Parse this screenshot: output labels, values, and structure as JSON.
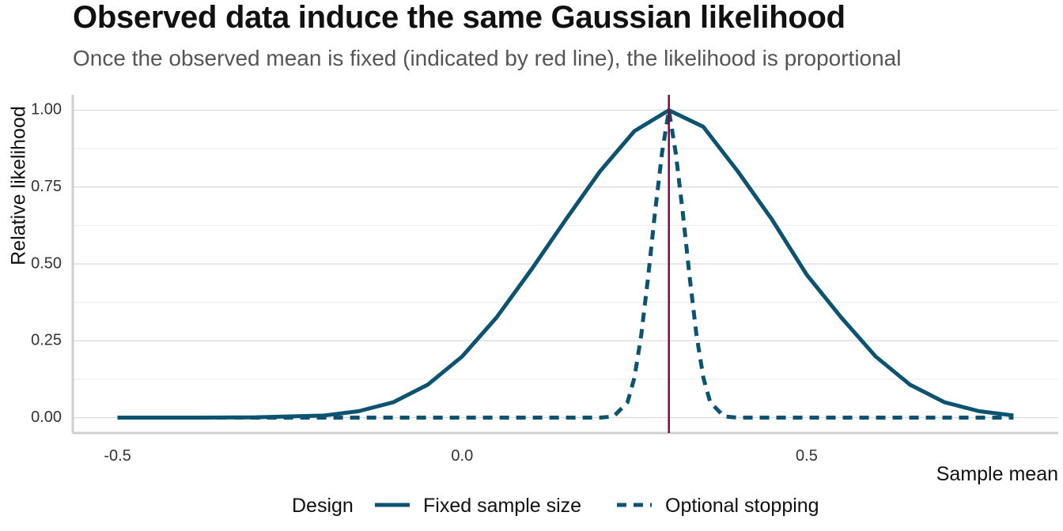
{
  "chart_data": {
    "type": "line",
    "title": "Observed data induce the same Gaussian likelihood",
    "subtitle": "Once the observed mean is fixed (indicated by red line), the likelihood is proportional",
    "xlabel": "Sample mean",
    "ylabel": "Relative likelihood",
    "xlim": [
      -0.565,
      0.865
    ],
    "ylim": [
      -0.05,
      1.05
    ],
    "x_ticks": [
      -0.5,
      0.0,
      0.5
    ],
    "x_tick_labels": [
      "-0.5",
      "0.0",
      "0.5"
    ],
    "y_ticks": [
      0,
      0.25,
      0.5,
      0.75,
      1.0
    ],
    "y_tick_labels": [
      "0.00",
      "0.25",
      "0.50",
      "0.75",
      "1.00"
    ],
    "grid": true,
    "observed_mean": 0.3,
    "legend": {
      "title": "Design",
      "position": "bottom"
    },
    "series": [
      {
        "name": "Fixed sample size",
        "style": "solid",
        "color": "#0b5370",
        "x": [
          -0.5,
          -0.4,
          -0.3,
          -0.2,
          -0.15,
          -0.1,
          -0.05,
          0.0,
          0.05,
          0.1,
          0.15,
          0.2,
          0.25,
          0.3,
          0.35,
          0.4,
          0.45,
          0.5,
          0.55,
          0.6,
          0.65,
          0.7,
          0.75,
          0.8
        ],
        "y": [
          0.0,
          0.0,
          0.001,
          0.007,
          0.021,
          0.05,
          0.107,
          0.199,
          0.326,
          0.48,
          0.643,
          0.801,
          0.932,
          1.0,
          0.946,
          0.801,
          0.643,
          0.465,
          0.326,
          0.199,
          0.107,
          0.05,
          0.021,
          0.007
        ]
      },
      {
        "name": "Optional stopping",
        "style": "dashed",
        "color": "#0b5370",
        "x": [
          -0.5,
          0.0,
          0.2,
          0.22,
          0.24,
          0.25,
          0.26,
          0.27,
          0.28,
          0.29,
          0.3,
          0.31,
          0.32,
          0.33,
          0.34,
          0.35,
          0.36,
          0.38,
          0.4,
          0.5,
          0.8
        ],
        "y": [
          0.0,
          0.0,
          0.0,
          0.004,
          0.05,
          0.13,
          0.27,
          0.46,
          0.67,
          0.86,
          1.0,
          0.86,
          0.67,
          0.46,
          0.27,
          0.13,
          0.05,
          0.004,
          0.0,
          0.0,
          0.0
        ]
      }
    ],
    "reference_line": {
      "color": "#7a0c3e"
    }
  }
}
